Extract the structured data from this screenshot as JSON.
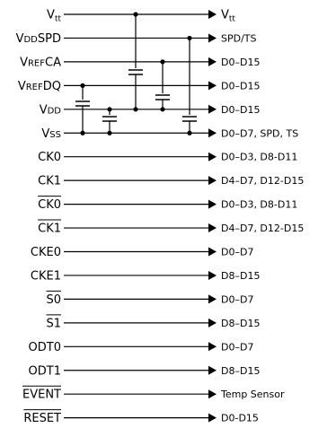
{
  "signals": [
    {
      "id": "vtt",
      "parts": [
        {
          "t": "V",
          "s": "n"
        },
        {
          "t": "tt",
          "s": "sub"
        }
      ],
      "overline": false,
      "dest_parts": [
        {
          "t": "V",
          "s": "n"
        },
        {
          "t": "tt",
          "s": "sub"
        }
      ]
    },
    {
      "id": "vddspd",
      "parts": [
        {
          "t": "V",
          "s": "n"
        },
        {
          "t": "DD",
          "s": "small"
        },
        {
          "t": "SPD",
          "s": "n"
        }
      ],
      "overline": false,
      "dest": "SPD/TS"
    },
    {
      "id": "vrefca",
      "parts": [
        {
          "t": "V",
          "s": "n"
        },
        {
          "t": "REF",
          "s": "small"
        },
        {
          "t": "CA",
          "s": "n"
        }
      ],
      "overline": false,
      "dest": "D0–D15"
    },
    {
      "id": "vrefdq",
      "parts": [
        {
          "t": "V",
          "s": "n"
        },
        {
          "t": "REF",
          "s": "small"
        },
        {
          "t": "DQ",
          "s": "n"
        }
      ],
      "overline": false,
      "dest": "D0–D15"
    },
    {
      "id": "vdd",
      "parts": [
        {
          "t": "V",
          "s": "n"
        },
        {
          "t": "DD",
          "s": "small"
        }
      ],
      "overline": false,
      "dest": "D0–D15"
    },
    {
      "id": "vss",
      "parts": [
        {
          "t": "V",
          "s": "n"
        },
        {
          "t": "SS",
          "s": "small"
        }
      ],
      "overline": false,
      "dest": "D0–D7, SPD, TS"
    },
    {
      "id": "ck0",
      "parts": [
        {
          "t": "CK0",
          "s": "n"
        }
      ],
      "overline": false,
      "dest": "D0–D3, D8-D11"
    },
    {
      "id": "ck1",
      "parts": [
        {
          "t": "CK1",
          "s": "n"
        }
      ],
      "overline": false,
      "dest": "D4–D7, D12-D15"
    },
    {
      "id": "ck0-n",
      "parts": [
        {
          "t": "CK0",
          "s": "n"
        }
      ],
      "overline": true,
      "dest": "D0–D3, D8-D11"
    },
    {
      "id": "ck1-n",
      "parts": [
        {
          "t": "CK1",
          "s": "n"
        }
      ],
      "overline": true,
      "dest": "D4–D7, D12-D15"
    },
    {
      "id": "cke0",
      "parts": [
        {
          "t": "CKE0",
          "s": "n"
        }
      ],
      "overline": false,
      "dest": "D0–D7"
    },
    {
      "id": "cke1",
      "parts": [
        {
          "t": "CKE1",
          "s": "n"
        }
      ],
      "overline": false,
      "dest": "D8–D15"
    },
    {
      "id": "s0-n",
      "parts": [
        {
          "t": "S0",
          "s": "n"
        }
      ],
      "overline": true,
      "dest": "D0–D7"
    },
    {
      "id": "s1-n",
      "parts": [
        {
          "t": "S1",
          "s": "n"
        }
      ],
      "overline": true,
      "dest": "D8–D15"
    },
    {
      "id": "odt0",
      "parts": [
        {
          "t": "ODT0",
          "s": "n"
        }
      ],
      "overline": false,
      "dest": "D0–D7"
    },
    {
      "id": "odt1",
      "parts": [
        {
          "t": "ODT1",
          "s": "n"
        }
      ],
      "overline": false,
      "dest": "D8–D15"
    },
    {
      "id": "event-n",
      "parts": [
        {
          "t": "EVENT",
          "s": "n"
        }
      ],
      "overline": true,
      "dest": "Temp Sensor"
    },
    {
      "id": "reset-n",
      "parts": [
        {
          "t": "RESET",
          "s": "n"
        }
      ],
      "overline": true,
      "dest": "D0-D15"
    }
  ],
  "colors": {
    "ink": "#000000",
    "background": "#ffffff"
  }
}
